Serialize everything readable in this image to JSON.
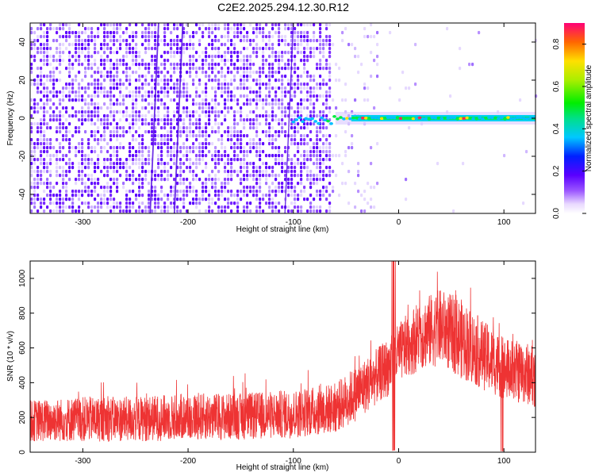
{
  "title": "C2E2.2025.294.12.30.R12",
  "chart_data": [
    {
      "type": "heatmap",
      "name": "spectrogram",
      "xlabel": "Height of straight line (km)",
      "ylabel": "Frequency (Hz)",
      "xlim": [
        -350,
        130
      ],
      "ylim": [
        -50,
        50
      ],
      "xticks": [
        -300,
        -200,
        -100,
        0,
        100
      ],
      "yticks": [
        -40,
        -20,
        0,
        20,
        40
      ],
      "colorbar": {
        "label": "Normalized spectral amplitude",
        "range": [
          0.0,
          0.9
        ],
        "ticks": [
          0.0,
          0.2,
          0.4,
          0.6,
          0.8
        ]
      },
      "features": {
        "noise_region_x": [
          -350,
          -65
        ],
        "sparse_noise_x": [
          -65,
          -20
        ],
        "signal_band_center_hz": 0,
        "signal_band_x": [
          -100,
          130
        ],
        "peak_amplitude": 0.9
      }
    },
    {
      "type": "line",
      "name": "snr",
      "xlabel": "Height of straight line (km)",
      "ylabel": "SNR (10 * v/v)",
      "xlim": [
        -350,
        130
      ],
      "ylim": [
        0,
        1100
      ],
      "xticks": [
        -300,
        -200,
        -100,
        0,
        100
      ],
      "yticks": [
        0,
        200,
        400,
        600,
        800,
        1000
      ],
      "color": "#ee3333",
      "envelope": {
        "x": [
          -350,
          -300,
          -250,
          -200,
          -150,
          -100,
          -60,
          -40,
          -20,
          -10,
          0,
          20,
          40,
          60,
          80,
          100,
          130
        ],
        "low": [
          60,
          60,
          60,
          70,
          70,
          80,
          110,
          180,
          280,
          320,
          400,
          470,
          500,
          420,
          360,
          300,
          260
        ],
        "high": [
          300,
          320,
          320,
          340,
          340,
          360,
          400,
          500,
          600,
          660,
          740,
          880,
          940,
          880,
          760,
          660,
          620
        ]
      }
    }
  ]
}
